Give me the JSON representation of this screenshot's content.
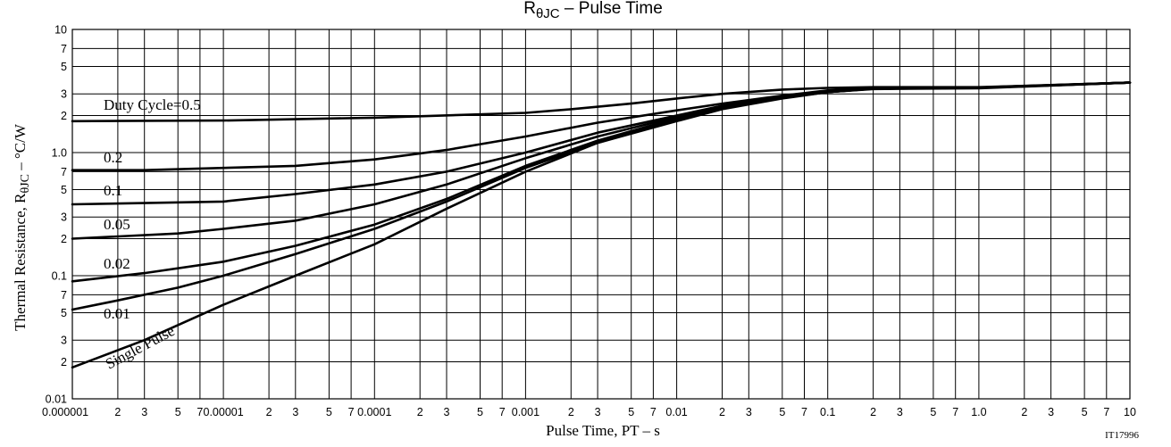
{
  "chart_data": {
    "type": "line",
    "title_parts": {
      "main": "R",
      "sub": "θJC",
      "rest": "  –  Pulse Time"
    },
    "xlabel": "Pulse Time, PT  –  s",
    "ylabel_parts": {
      "main": "Thermal Resistance, R",
      "sub": "θJC",
      "rest": "  –  °C/W"
    },
    "figure_code": "IT17996",
    "x_scale": "log",
    "y_scale": "log",
    "xlim": [
      1e-06,
      10
    ],
    "ylim": [
      0.01,
      10
    ],
    "grid": true,
    "x_ticks": [
      {
        "v": 1e-06,
        "t": "0.000001"
      },
      {
        "v": 2e-06,
        "t": "2"
      },
      {
        "v": 3e-06,
        "t": "3"
      },
      {
        "v": 5e-06,
        "t": "5"
      },
      {
        "v": 7e-06,
        "t": "7"
      },
      {
        "v": 1e-05,
        "t": "0.00001"
      },
      {
        "v": 2e-05,
        "t": "2"
      },
      {
        "v": 3e-05,
        "t": "3"
      },
      {
        "v": 5e-05,
        "t": "5"
      },
      {
        "v": 7e-05,
        "t": "7"
      },
      {
        "v": 0.0001,
        "t": "0.0001"
      },
      {
        "v": 0.0002,
        "t": "2"
      },
      {
        "v": 0.0003,
        "t": "3"
      },
      {
        "v": 0.0005,
        "t": "5"
      },
      {
        "v": 0.0007,
        "t": "7"
      },
      {
        "v": 0.001,
        "t": "0.001"
      },
      {
        "v": 0.002,
        "t": "2"
      },
      {
        "v": 0.003,
        "t": "3"
      },
      {
        "v": 0.005,
        "t": "5"
      },
      {
        "v": 0.007,
        "t": "7"
      },
      {
        "v": 0.01,
        "t": "0.01"
      },
      {
        "v": 0.02,
        "t": "2"
      },
      {
        "v": 0.03,
        "t": "3"
      },
      {
        "v": 0.05,
        "t": "5"
      },
      {
        "v": 0.07,
        "t": "7"
      },
      {
        "v": 0.1,
        "t": "0.1"
      },
      {
        "v": 0.2,
        "t": "2"
      },
      {
        "v": 0.3,
        "t": "3"
      },
      {
        "v": 0.5,
        "t": "5"
      },
      {
        "v": 0.7,
        "t": "7"
      },
      {
        "v": 1,
        "t": "1.0"
      },
      {
        "v": 2,
        "t": "2"
      },
      {
        "v": 3,
        "t": "3"
      },
      {
        "v": 5,
        "t": "5"
      },
      {
        "v": 7,
        "t": "7"
      },
      {
        "v": 10,
        "t": "10"
      }
    ],
    "y_ticks": [
      {
        "v": 0.01,
        "t": "0.01"
      },
      {
        "v": 0.02,
        "t": "2"
      },
      {
        "v": 0.03,
        "t": "3"
      },
      {
        "v": 0.05,
        "t": "5"
      },
      {
        "v": 0.07,
        "t": "7"
      },
      {
        "v": 0.1,
        "t": "0.1"
      },
      {
        "v": 0.2,
        "t": "2"
      },
      {
        "v": 0.3,
        "t": "3"
      },
      {
        "v": 0.5,
        "t": "5"
      },
      {
        "v": 0.7,
        "t": "7"
      },
      {
        "v": 1,
        "t": "1.0"
      },
      {
        "v": 2,
        "t": "2"
      },
      {
        "v": 3,
        "t": "3"
      },
      {
        "v": 5,
        "t": "5"
      },
      {
        "v": 7,
        "t": "7"
      },
      {
        "v": 10,
        "t": "10"
      }
    ],
    "series": [
      {
        "name": "Duty Cycle=0.5",
        "x": [
          1e-06,
          1e-05,
          0.0001,
          0.001,
          0.002,
          0.005,
          0.01,
          0.02,
          0.05,
          0.1,
          0.2,
          1,
          10
        ],
        "y": [
          1.8,
          1.82,
          1.92,
          2.1,
          2.25,
          2.5,
          2.75,
          3.0,
          3.25,
          3.35,
          3.4,
          3.4,
          3.7
        ]
      },
      {
        "name": "0.2",
        "x": [
          1e-06,
          3e-06,
          1e-05,
          3e-05,
          0.0001,
          0.0003,
          0.001,
          0.003,
          0.01,
          0.02,
          0.05,
          0.1,
          0.2,
          1,
          10
        ],
        "y": [
          0.72,
          0.72,
          0.75,
          0.78,
          0.88,
          1.05,
          1.35,
          1.75,
          2.2,
          2.5,
          2.9,
          3.2,
          3.35,
          3.38,
          3.7
        ]
      },
      {
        "name": "0.1",
        "x": [
          1e-06,
          1e-05,
          3e-05,
          0.0001,
          0.0003,
          0.001,
          0.003,
          0.01,
          0.02,
          0.05,
          0.1,
          0.2,
          1,
          10
        ],
        "y": [
          0.38,
          0.4,
          0.46,
          0.55,
          0.7,
          1.0,
          1.45,
          2.0,
          2.4,
          2.85,
          3.15,
          3.35,
          3.38,
          3.7
        ]
      },
      {
        "name": "0.05",
        "x": [
          1e-06,
          5e-06,
          1e-05,
          3e-05,
          0.0001,
          0.0003,
          0.001,
          0.003,
          0.01,
          0.02,
          0.05,
          0.1,
          0.2,
          1,
          10
        ],
        "y": [
          0.2,
          0.22,
          0.24,
          0.28,
          0.38,
          0.55,
          0.9,
          1.35,
          1.95,
          2.35,
          2.8,
          3.1,
          3.3,
          3.35,
          3.7
        ]
      },
      {
        "name": "0.02",
        "x": [
          1e-06,
          3e-06,
          1e-05,
          3e-05,
          0.0001,
          0.0003,
          0.001,
          0.003,
          0.01,
          0.02,
          0.05,
          0.1,
          0.2,
          1,
          10
        ],
        "y": [
          0.09,
          0.105,
          0.13,
          0.175,
          0.26,
          0.42,
          0.78,
          1.25,
          1.9,
          2.3,
          2.8,
          3.1,
          3.3,
          3.35,
          3.7
        ]
      },
      {
        "name": "0.01",
        "x": [
          1e-06,
          2e-06,
          5e-06,
          1e-05,
          3e-05,
          0.0001,
          0.0003,
          0.001,
          0.003,
          0.01,
          0.02,
          0.05,
          0.1,
          0.2,
          1,
          10
        ],
        "y": [
          0.053,
          0.063,
          0.08,
          0.1,
          0.15,
          0.24,
          0.4,
          0.75,
          1.2,
          1.85,
          2.3,
          2.78,
          3.1,
          3.3,
          3.35,
          3.7
        ]
      },
      {
        "name": "Single Pulse",
        "x": [
          1e-06,
          3e-06,
          1e-05,
          3e-05,
          0.0001,
          0.0003,
          0.001,
          0.003,
          0.01,
          0.02,
          0.05,
          0.1,
          0.2,
          1,
          10
        ],
        "y": [
          0.018,
          0.03,
          0.058,
          0.1,
          0.18,
          0.35,
          0.7,
          1.2,
          1.8,
          2.25,
          2.75,
          3.1,
          3.28,
          3.33,
          3.7
        ]
      }
    ]
  }
}
